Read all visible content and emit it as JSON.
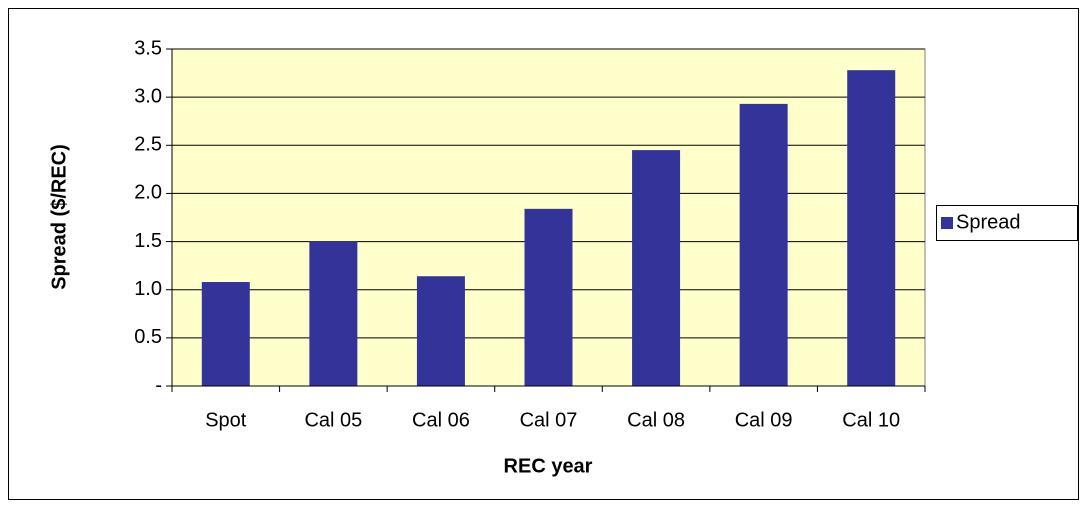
{
  "chart_data": {
    "type": "bar",
    "x_label": "REC year",
    "y_label": "Spread ($/REC)",
    "categories": [
      "Spot",
      "Cal 05",
      "Cal 06",
      "Cal 07",
      "Cal 08",
      "Cal 09",
      "Cal 10"
    ],
    "series": [
      {
        "name": "Spread",
        "color": "#333399",
        "values": [
          1.08,
          1.5,
          1.14,
          1.84,
          2.45,
          2.93,
          3.28
        ]
      }
    ],
    "ylim": [
      0,
      3.5
    ],
    "yticks": [
      {
        "value": 0,
        "label": "-"
      },
      0.5,
      {
        "value": 1,
        "label": "1.0"
      },
      1.5,
      {
        "value": 2,
        "label": "2.0"
      },
      2.5,
      {
        "value": 3,
        "label": "3.0"
      },
      3.5
    ],
    "grid": true,
    "plot_background": "#ffffcc",
    "legend": "right"
  }
}
